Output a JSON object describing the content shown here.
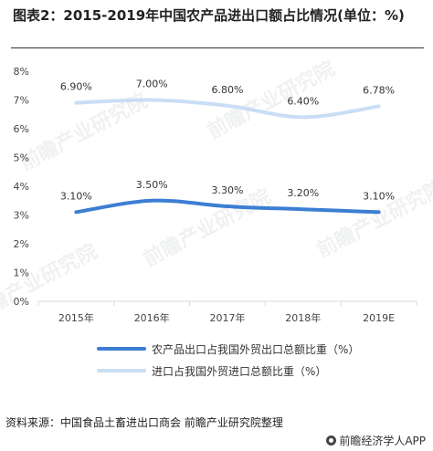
{
  "title": "图表2：2015-2019年中国农产品进出口额占比情况(单位：%)",
  "source": "资料来源：中国食品土畜进出口商会 前瞻产业研究院整理",
  "brand": "前瞻经济学人APP",
  "watermark": "前瞻产业研究院",
  "colors": {
    "series0": "#3c7ed3",
    "series1": "#c9def5",
    "axis": "#d9d9d9",
    "grid": "#e6e6e6"
  },
  "chart_data": {
    "type": "line",
    "categories": [
      "2015年",
      "2016年",
      "2017年",
      "2018年",
      "2019E"
    ],
    "ylim": [
      0,
      8
    ],
    "yticks": [
      "0%",
      "1%",
      "2%",
      "3%",
      "4%",
      "5%",
      "6%",
      "7%",
      "8%"
    ],
    "grid": false,
    "legend_position": "bottom",
    "series": [
      {
        "name": "农产品出口占我国外贸出口总额比重（%）",
        "values": [
          3.1,
          3.5,
          3.3,
          3.2,
          3.1
        ],
        "labels": [
          "3.10%",
          "3.50%",
          "3.30%",
          "3.20%",
          "3.10%"
        ]
      },
      {
        "name": "进口占我国外贸进口总额比重（%）",
        "values": [
          6.9,
          7.0,
          6.8,
          6.4,
          6.78
        ],
        "labels": [
          "6.90%",
          "7.00%",
          "6.80%",
          "6.40%",
          "6.78%"
        ]
      }
    ]
  }
}
